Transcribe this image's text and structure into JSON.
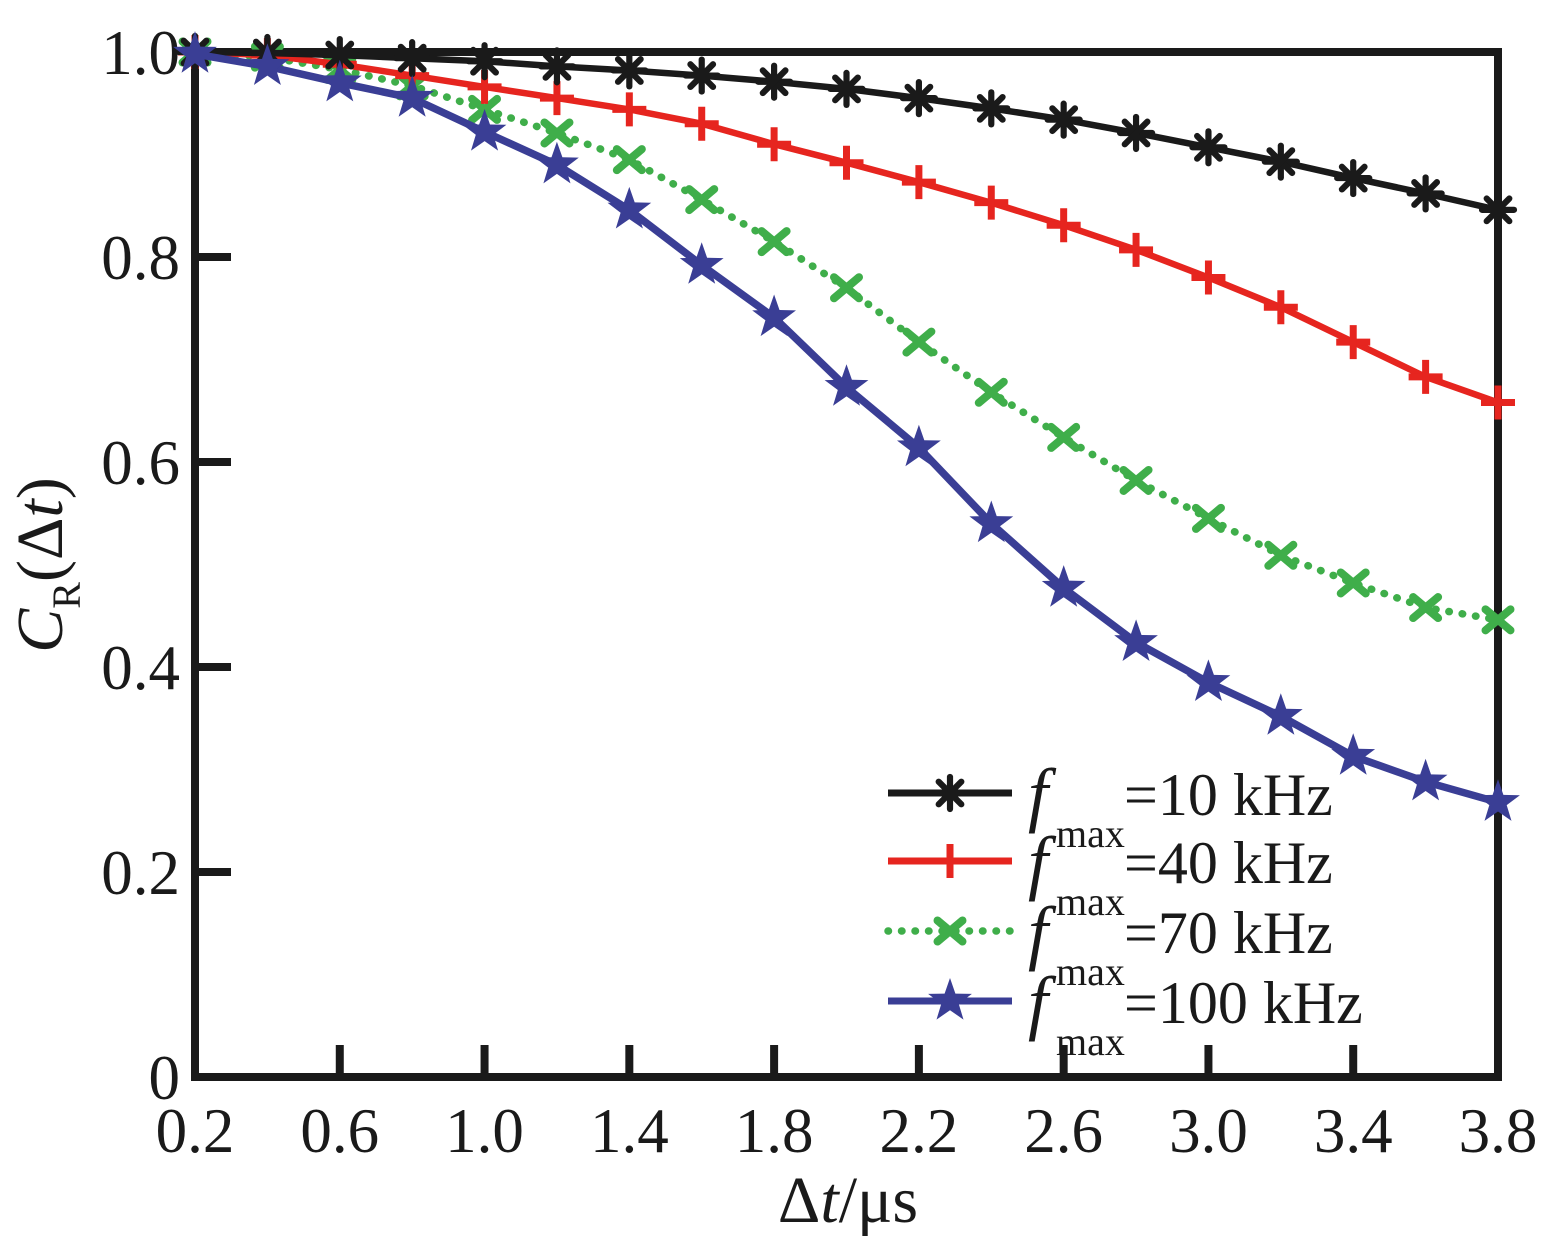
{
  "figure": {
    "background": "#ffffff",
    "axis_color": "#1a1a1a"
  },
  "chart_data": {
    "type": "line",
    "title": "",
    "xlabel": "Δt/μs",
    "ylabel": "C_R(Δt)",
    "xlabel_parts": {
      "delta": "Δ",
      "t_italic": "t",
      "units": "/μs"
    },
    "ylabel_parts": {
      "c_italic": "C",
      "subscript": "R",
      "open": "(Δ",
      "t_italic": "t",
      "close": ")"
    },
    "xlim": [
      0.2,
      3.8
    ],
    "ylim": [
      0,
      1.0
    ],
    "grid": false,
    "legend_position": "lower right",
    "xticks": [
      0.2,
      0.6,
      1.0,
      1.4,
      1.8,
      2.2,
      2.6,
      3.0,
      3.4,
      3.8
    ],
    "xtick_labels": [
      "0.2",
      "0.6",
      "1.0",
      "1.4",
      "1.8",
      "2.2",
      "2.6",
      "3.0",
      "3.4",
      "3.8"
    ],
    "yticks": [
      0,
      0.2,
      0.4,
      0.6,
      0.8,
      1.0
    ],
    "ytick_labels": [
      "0",
      "0.2",
      "0.4",
      "0.6",
      "0.8",
      "1.0"
    ],
    "x": [
      0.2,
      0.4,
      0.6,
      0.8,
      1.0,
      1.2,
      1.4,
      1.6,
      1.8,
      2.0,
      2.2,
      2.4,
      2.6,
      2.8,
      3.0,
      3.2,
      3.4,
      3.6,
      3.8
    ],
    "series": [
      {
        "name": "fmax=10 kHz",
        "color": "#1a1a1a",
        "marker": "asterisk",
        "line": "solid",
        "values": [
          1.0,
          0.999,
          0.997,
          0.994,
          0.991,
          0.986,
          0.982,
          0.977,
          0.971,
          0.964,
          0.955,
          0.945,
          0.934,
          0.921,
          0.907,
          0.893,
          0.877,
          0.862,
          0.846
        ]
      },
      {
        "name": "fmax=40 kHz",
        "color": "#e6251f",
        "marker": "plus",
        "line": "solid",
        "values": [
          1.0,
          0.997,
          0.988,
          0.977,
          0.966,
          0.955,
          0.944,
          0.93,
          0.91,
          0.892,
          0.873,
          0.853,
          0.831,
          0.807,
          0.78,
          0.751,
          0.717,
          0.683,
          0.658
        ]
      },
      {
        "name": "fmax=70 kHz",
        "color": "#3fae4a",
        "marker": "x",
        "line": "dotted",
        "values": [
          1.0,
          0.995,
          0.983,
          0.967,
          0.944,
          0.921,
          0.895,
          0.856,
          0.815,
          0.77,
          0.717,
          0.668,
          0.624,
          0.582,
          0.545,
          0.509,
          0.482,
          0.458,
          0.446
        ]
      },
      {
        "name": "fmax=100 kHz",
        "color": "#3a3e95",
        "marker": "star",
        "line": "solid",
        "values": [
          0.998,
          0.986,
          0.97,
          0.955,
          0.922,
          0.89,
          0.846,
          0.792,
          0.741,
          0.673,
          0.614,
          0.54,
          0.477,
          0.424,
          0.385,
          0.352,
          0.313,
          0.288,
          0.268
        ]
      }
    ],
    "legend": [
      {
        "symbol": "f",
        "subscript": "max",
        "label": "=10 kHz",
        "full_label": "fmax=10 kHz"
      },
      {
        "symbol": "f",
        "subscript": "max",
        "label": "=40 kHz",
        "full_label": "fmax=40 kHz"
      },
      {
        "symbol": "f",
        "subscript": "max",
        "label": "=70 kHz",
        "full_label": "fmax=70 kHz"
      },
      {
        "symbol": "f",
        "subscript": "max",
        "label": "=100 kHz",
        "full_label": "fmax=100 kHz"
      }
    ]
  }
}
